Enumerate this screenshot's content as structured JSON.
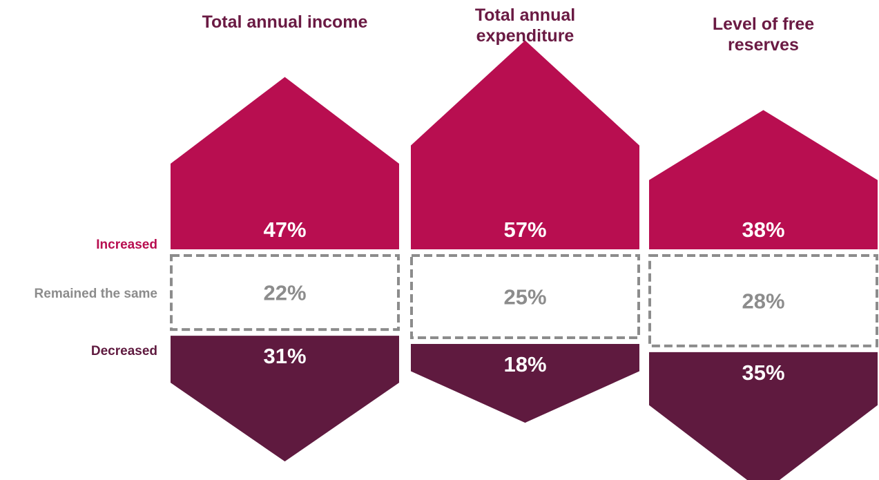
{
  "chart_data": {
    "type": "bar",
    "categories": [
      "Total annual income",
      "Total annual expenditure",
      "Level of free reserves"
    ],
    "title_lines": [
      [
        "Total annual income"
      ],
      [
        "Total annual",
        "expenditure"
      ],
      [
        "Level of free",
        "reserves"
      ]
    ],
    "series": [
      {
        "name": "Increased",
        "values": [
          47,
          57,
          38
        ]
      },
      {
        "name": "Remained the same",
        "values": [
          22,
          25,
          28
        ]
      },
      {
        "name": "Decreased",
        "values": [
          31,
          18,
          35
        ]
      }
    ],
    "value_labels": {
      "increased": [
        "47%",
        "57%",
        "38%"
      ],
      "same": [
        "22%",
        "25%",
        "28%"
      ],
      "decreased": [
        "31%",
        "18%",
        "35%"
      ]
    },
    "unit": "%",
    "legend": "left",
    "colors": {
      "increased": "#b80e50",
      "decreased": "#5f1a3f",
      "same_border": "#8c8c8c",
      "same_text": "#8c8c8c",
      "title": "#6a1a43",
      "value_text": "#ffffff"
    }
  }
}
